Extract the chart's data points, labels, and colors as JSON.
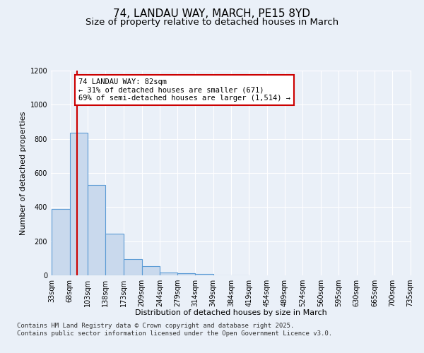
{
  "title_line1": "74, LANDAU WAY, MARCH, PE15 8YD",
  "title_line2": "Size of property relative to detached houses in March",
  "xlabel": "Distribution of detached houses by size in March",
  "ylabel": "Number of detached properties",
  "categories": [
    "33sqm",
    "68sqm",
    "103sqm",
    "138sqm",
    "173sqm",
    "209sqm",
    "244sqm",
    "279sqm",
    "314sqm",
    "349sqm",
    "384sqm",
    "419sqm",
    "454sqm",
    "489sqm",
    "524sqm",
    "560sqm",
    "595sqm",
    "630sqm",
    "665sqm",
    "700sqm",
    "735sqm"
  ],
  "bar_edges": [
    33,
    68,
    103,
    138,
    173,
    209,
    244,
    279,
    314,
    349,
    384,
    419,
    454,
    489,
    524,
    560,
    595,
    630,
    665,
    700,
    735
  ],
  "bar_heights": [
    390,
    835,
    530,
    245,
    95,
    55,
    18,
    13,
    7,
    2,
    1,
    0,
    0,
    0,
    0,
    0,
    0,
    0,
    0,
    0
  ],
  "bar_color": "#c9d9ed",
  "bar_edge_color": "#5b9bd5",
  "vline_x": 82,
  "vline_color": "#cc0000",
  "annotation_text": "74 LANDAU WAY: 82sqm\n← 31% of detached houses are smaller (671)\n69% of semi-detached houses are larger (1,514) →",
  "annotation_box_color": "#ffffff",
  "annotation_box_edge": "#cc0000",
  "ylim": [
    0,
    1200
  ],
  "yticks": [
    0,
    200,
    400,
    600,
    800,
    1000,
    1200
  ],
  "bg_color": "#eaf0f8",
  "plot_bg_color": "#eaf0f8",
  "footer_text": "Contains HM Land Registry data © Crown copyright and database right 2025.\nContains public sector information licensed under the Open Government Licence v3.0.",
  "title_fontsize": 11,
  "subtitle_fontsize": 9.5,
  "axis_label_fontsize": 8,
  "tick_fontsize": 7,
  "annotation_fontsize": 7.5,
  "footer_fontsize": 6.5
}
